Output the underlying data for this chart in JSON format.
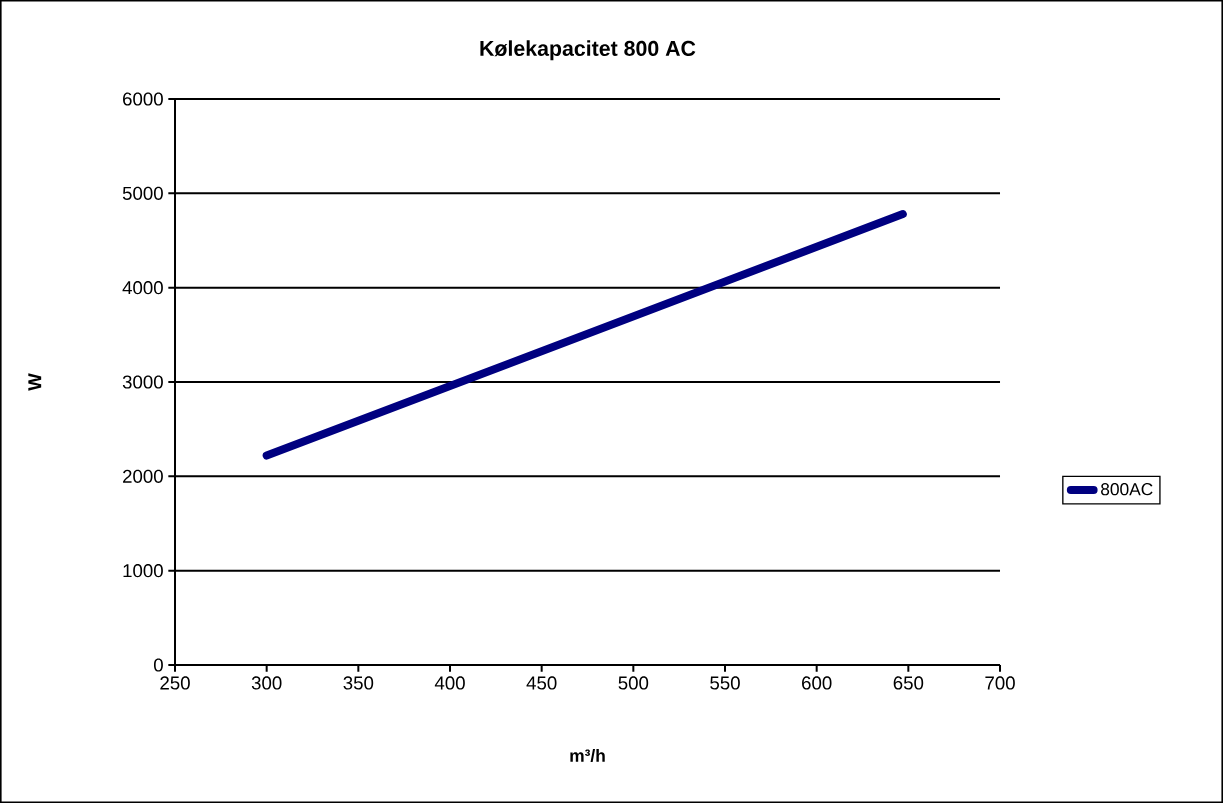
{
  "chart_data": {
    "type": "line",
    "title": "Kølekapacitet 800 AC",
    "xlabel": "m³/h",
    "ylabel": "W",
    "x": [
      300,
      647
    ],
    "series": [
      {
        "name": "800AC",
        "color": "#000080",
        "values": [
          2220,
          4780
        ]
      }
    ],
    "xlim": [
      250,
      700
    ],
    "xticks": [
      250,
      300,
      350,
      400,
      450,
      500,
      550,
      600,
      650,
      700
    ],
    "ylim": [
      0,
      6000
    ],
    "yticks": [
      0,
      1000,
      2000,
      3000,
      4000,
      5000,
      6000
    ],
    "grid": "y",
    "legend": "right",
    "marker": "none",
    "line_style": "solid"
  }
}
